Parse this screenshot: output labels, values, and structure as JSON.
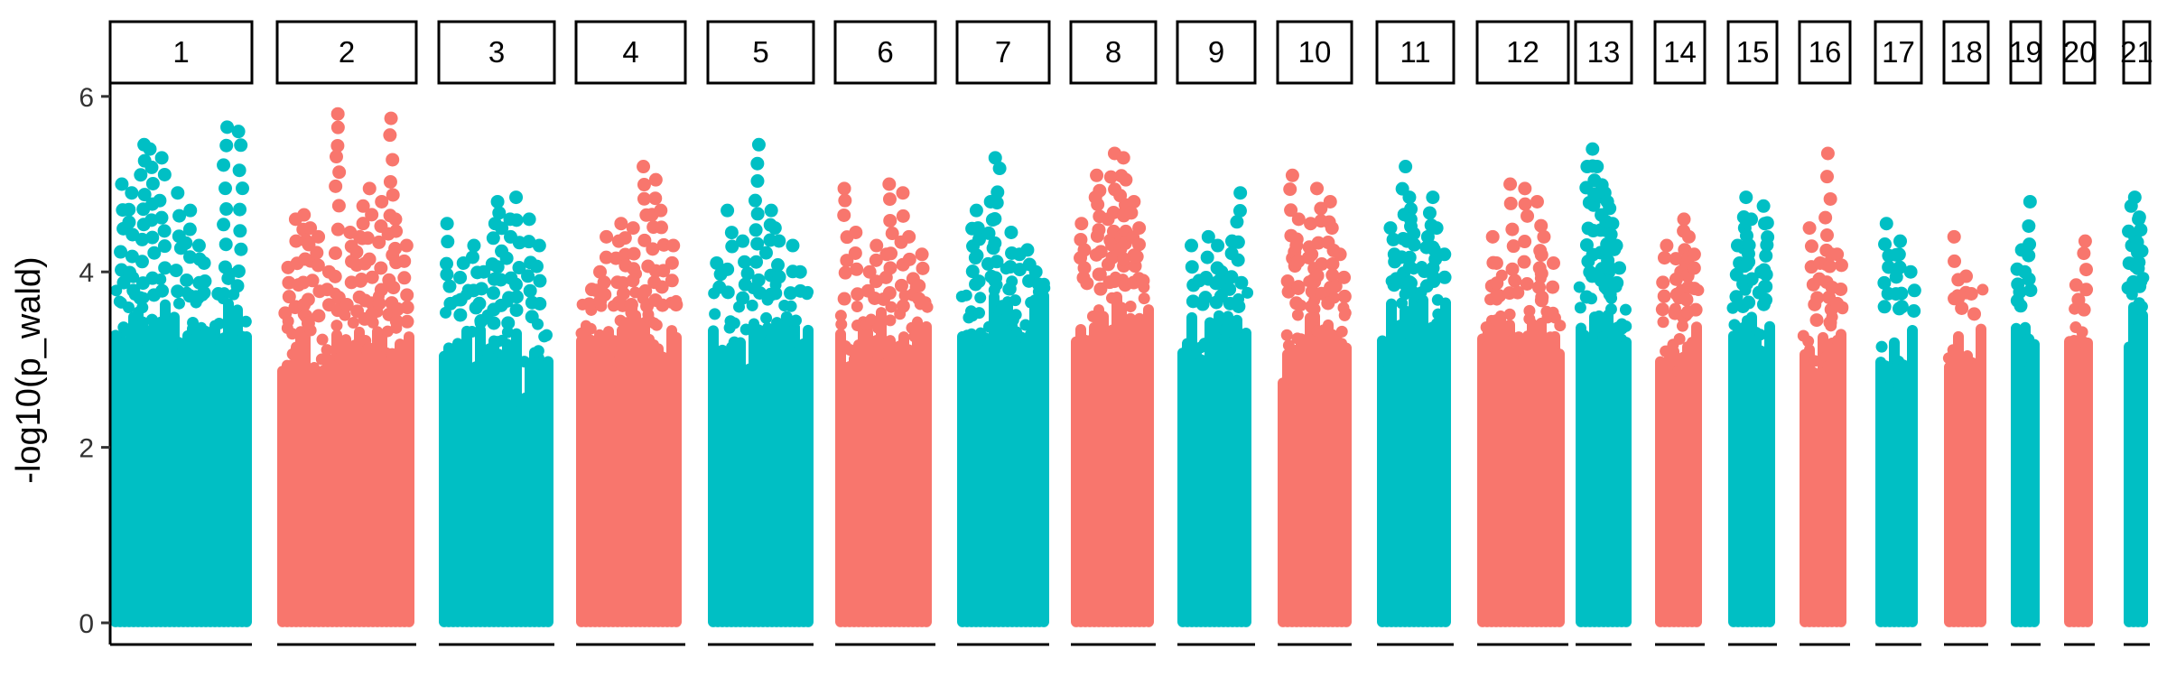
{
  "chart_data": {
    "type": "scatter",
    "ylabel": "-log10(p_wald)",
    "xlabel": "",
    "ylim": [
      -0.2,
      6.1
    ],
    "yticks": [
      0,
      2,
      4,
      6
    ],
    "grid": false,
    "legend": "none",
    "colors": {
      "odd": "#00BFC4",
      "even": "#F8766D"
    },
    "panels": [
      {
        "chr": "1",
        "label": "1",
        "color": "#00BFC4",
        "max": 3.7,
        "peaks": [
          5.0,
          4.9,
          5.45,
          5.4,
          5.3,
          4.9,
          4.7,
          4.3,
          4.1,
          3.75,
          5.65,
          5.6
        ]
      },
      {
        "chr": "2",
        "label": "2",
        "color": "#F8766D",
        "max": 3.4,
        "peaks": [
          4.05,
          4.6,
          4.65,
          4.5,
          4.4,
          4.0,
          5.8,
          4.45,
          4.4,
          4.75,
          4.95,
          4.8,
          5.75,
          4.6,
          4.3
        ]
      },
      {
        "chr": "3",
        "label": "3",
        "color": "#00BFC4",
        "max": 3.4,
        "peaks": [
          4.55,
          4.1,
          4.3,
          4.0,
          4.55,
          4.8,
          4.6,
          4.85,
          4.6,
          4.3
        ]
      },
      {
        "chr": "4",
        "label": "4",
        "color": "#F8766D",
        "max": 3.6,
        "peaks": [
          3.8,
          4.0,
          4.4,
          4.35,
          4.55,
          4.5,
          5.2,
          5.05,
          4.7,
          4.3
        ]
      },
      {
        "chr": "5",
        "label": "5",
        "color": "#00BFC4",
        "max": 3.7,
        "peaks": [
          4.1,
          4.7,
          4.35,
          5.45,
          4.7,
          4.5,
          4.3,
          4.0
        ]
      },
      {
        "chr": "6",
        "label": "6",
        "color": "#F8766D",
        "max": 3.6,
        "peaks": [
          4.95,
          4.45,
          4.0,
          4.3,
          4.2,
          5.0,
          4.9,
          4.4,
          4.2
        ]
      },
      {
        "chr": "7",
        "label": "7",
        "color": "#00BFC4",
        "max": 3.8,
        "peaks": [
          4.7,
          4.5,
          4.8,
          5.3,
          4.45,
          4.2,
          4.25,
          4.0
        ]
      },
      {
        "chr": "8",
        "label": "8",
        "color": "#F8766D",
        "max": 3.8,
        "peaks": [
          4.55,
          4.25,
          5.1,
          4.85,
          4.6,
          5.35,
          5.3,
          5.05,
          4.8,
          4.5,
          3.9
        ]
      },
      {
        "chr": "9",
        "label": "9",
        "color": "#00BFC4",
        "max": 3.6,
        "peaks": [
          4.3,
          3.9,
          4.4,
          4.3,
          4.0,
          4.35,
          4.9
        ]
      },
      {
        "chr": "10",
        "label": "10",
        "color": "#F8766D",
        "max": 3.6,
        "peaks": [
          5.1,
          4.6,
          4.3,
          4.55,
          4.2,
          4.95,
          4.8,
          4.5,
          4.2
        ]
      },
      {
        "chr": "11",
        "label": "11",
        "color": "#00BFC4",
        "max": 3.8,
        "peaks": [
          4.5,
          4.2,
          5.2,
          4.85,
          4.6,
          4.4,
          4.85,
          4.5,
          4.2
        ]
      },
      {
        "chr": "12",
        "label": "12",
        "color": "#F8766D",
        "max": 3.6,
        "peaks": [
          4.4,
          4.1,
          5.0,
          3.9,
          4.95,
          4.8,
          4.4,
          4.1
        ]
      },
      {
        "chr": "13",
        "label": "13",
        "color": "#00BFC4",
        "max": 3.7,
        "peaks": [
          5.2,
          5.4,
          5.2,
          4.9,
          4.8,
          4.55,
          4.3
        ]
      },
      {
        "chr": "14",
        "label": "14",
        "color": "#F8766D",
        "max": 3.5,
        "peaks": [
          4.3,
          4.15,
          4.0,
          4.6,
          4.4,
          4.2
        ]
      },
      {
        "chr": "15",
        "label": "15",
        "color": "#00BFC4",
        "max": 3.6,
        "peaks": [
          4.3,
          4.5,
          4.85,
          4.6,
          4.0,
          4.75,
          4.55
        ]
      },
      {
        "chr": "16",
        "label": "16",
        "color": "#F8766D",
        "max": 3.4,
        "peaks": [
          4.5,
          4.1,
          5.35,
          4.2,
          4.2
        ]
      },
      {
        "chr": "17",
        "label": "17",
        "color": "#00BFC4",
        "max": 3.5,
        "peaks": [
          4.55,
          4.35,
          4.2,
          4.0
        ]
      },
      {
        "chr": "18",
        "label": "18",
        "color": "#F8766D",
        "max": 3.5,
        "peaks": [
          4.4,
          3.95,
          3.75
        ]
      },
      {
        "chr": "19",
        "label": "19",
        "color": "#00BFC4",
        "max": 3.5,
        "peaks": [
          4.25,
          4.0,
          4.8
        ]
      },
      {
        "chr": "20",
        "label": "20",
        "color": "#F8766D",
        "max": 3.5,
        "peaks": [
          3.85,
          4.35
        ]
      },
      {
        "chr": "21",
        "label": "21",
        "color": "#00BFC4",
        "max": 3.7,
        "peaks": [
          4.75,
          4.4,
          4.85,
          4.6
        ]
      }
    ]
  }
}
